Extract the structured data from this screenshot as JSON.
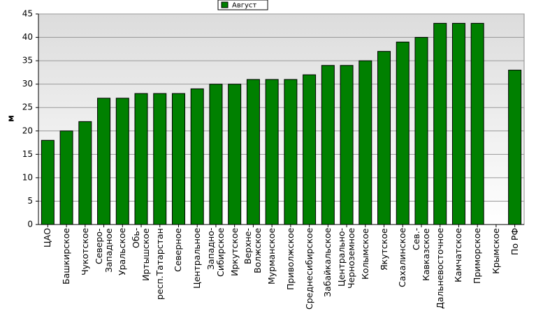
{
  "chart_data": {
    "type": "bar",
    "legend_title": "Август",
    "y_label": "м",
    "color": "#008000",
    "categories": [
      "ЦАО",
      "Башкирское",
      "Чукотское",
      "Северо-\nЗападное",
      "Уральское",
      "Обь-\nИртышское",
      "респ.Татарстан",
      "Северное",
      "Центральное",
      "Западно-\nСибирское",
      "Иркутское",
      "Верхне-\nВолжское",
      "Мурманское",
      "Приволжское",
      "Среднесибирское",
      "Забайкальское",
      "Центрально-\nЧерноземное",
      "Колымское",
      "Якутское",
      "Сахалинское",
      "Сев.-\nКавказское",
      "Дальневосточное",
      "Камчатское",
      "Приморское",
      "Крымское",
      "По РФ"
    ],
    "values": [
      18,
      20,
      22,
      27,
      27,
      28,
      28,
      28,
      29,
      30,
      30,
      31,
      31,
      31,
      32,
      34,
      34,
      35,
      37,
      39,
      40,
      43,
      43,
      43,
      null,
      33
    ],
    "ylim": [
      0,
      45
    ],
    "yticks": [
      0,
      5,
      10,
      15,
      20,
      25,
      30,
      35,
      40,
      45
    ],
    "grid": true
  }
}
